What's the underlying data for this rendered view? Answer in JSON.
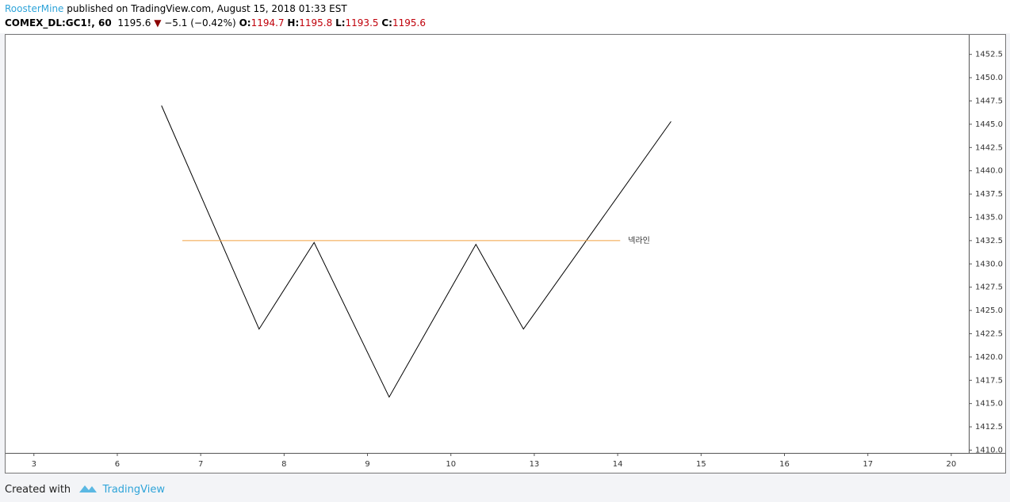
{
  "header": {
    "author": "RoosterMine",
    "published": "published on TradingView.com, August 15, 2018 01:33 EST",
    "symbol": "COMEX_DL:GC1!, 60",
    "last": "1195.6",
    "arrow": "▼",
    "change": "−5.1 (−0.42%)",
    "o_label": "O:",
    "o": "1194.7",
    "h_label": "H:",
    "h": "1195.8",
    "l_label": "L:",
    "l": "1193.5",
    "c_label": "C:",
    "c": "1195.6"
  },
  "chart_data": {
    "type": "line",
    "color": "#000000",
    "x": [
      1.53,
      2.7,
      3.36,
      4.26,
      5.3,
      5.87,
      7.64
    ],
    "values": [
      1447.0,
      1423.0,
      1432.3,
      1415.7,
      1432.1,
      1423.0,
      1445.3
    ],
    "annotations": [
      {
        "text": "넥라인",
        "x": [
          1.78,
          7.03
        ],
        "y": 1432.5,
        "color": "#f0a040"
      }
    ],
    "xlim": [
      -0.34,
      11.21
    ],
    "ylim": [
      1409.7,
      1454.6
    ],
    "xticks": [
      {
        "value": 0,
        "label": "3"
      },
      {
        "value": 1,
        "label": "6"
      },
      {
        "value": 2,
        "label": "7"
      },
      {
        "value": 3,
        "label": "8"
      },
      {
        "value": 4,
        "label": "9"
      },
      {
        "value": 5,
        "label": "10"
      },
      {
        "value": 6,
        "label": "13"
      },
      {
        "value": 7,
        "label": "14"
      },
      {
        "value": 8,
        "label": "15"
      },
      {
        "value": 9,
        "label": "16"
      },
      {
        "value": 10,
        "label": "17"
      },
      {
        "value": 11,
        "label": "20"
      }
    ],
    "yticks": [
      {
        "value": 1410,
        "label": "1410.0"
      },
      {
        "value": 1412.5,
        "label": "1412.5"
      },
      {
        "value": 1415,
        "label": "1415.0"
      },
      {
        "value": 1417.5,
        "label": "1417.5"
      },
      {
        "value": 1420,
        "label": "1420.0"
      },
      {
        "value": 1422.5,
        "label": "1422.5"
      },
      {
        "value": 1425,
        "label": "1425.0"
      },
      {
        "value": 1427.5,
        "label": "1427.5"
      },
      {
        "value": 1430,
        "label": "1430.0"
      },
      {
        "value": 1432.5,
        "label": "1432.5"
      },
      {
        "value": 1435,
        "label": "1435.0"
      },
      {
        "value": 1437.5,
        "label": "1437.5"
      },
      {
        "value": 1440,
        "label": "1440.0"
      },
      {
        "value": 1442.5,
        "label": "1442.5"
      },
      {
        "value": 1445,
        "label": "1445.0"
      },
      {
        "value": 1447.5,
        "label": "1447.5"
      },
      {
        "value": 1450,
        "label": "1450.0"
      },
      {
        "value": 1452.5,
        "label": "1452.5"
      }
    ]
  },
  "footer": {
    "created": "Created with",
    "brand": "TradingView"
  }
}
